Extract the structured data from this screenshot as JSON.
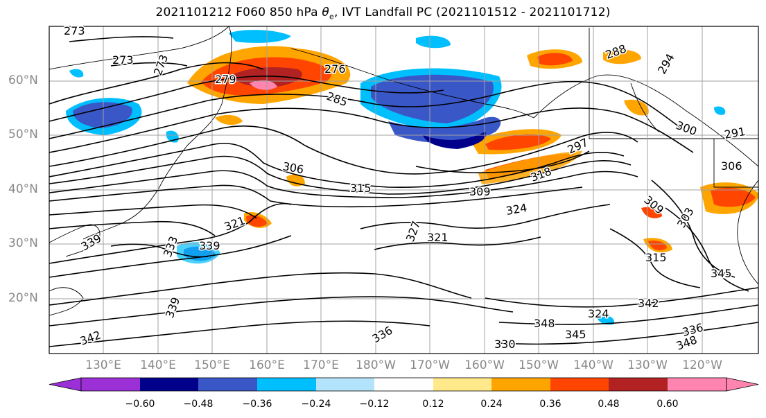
{
  "title": {
    "prefix": "2021101212 F060 850 hPa ",
    "theta": "θ",
    "sub": "e",
    "suffix": ", IVT Landfall PC (2021101512 - 2021101712)"
  },
  "lat_labels": [
    "60°N",
    "50°N",
    "40°N",
    "30°N",
    "20°N"
  ],
  "lon_labels": [
    "130°E",
    "140°E",
    "150°E",
    "160°E",
    "170°E",
    "180°W",
    "170°W",
    "160°W",
    "150°W",
    "140°W",
    "130°W",
    "120°W"
  ],
  "colorbar": {
    "colors": [
      "#9b30d6",
      "#00008b",
      "#3a57c8",
      "#00bfff",
      "#b4e4fb",
      "#ffffff",
      "#ffe98a",
      "#ffa500",
      "#ff4500",
      "#b22222",
      "#ff85b0"
    ],
    "tick_labels": [
      "−0.60",
      "−0.48",
      "−0.36",
      "−0.24",
      "−0.12",
      "0.12",
      "0.24",
      "0.36",
      "0.48",
      "0.60"
    ]
  },
  "contour_labels": [
    "273",
    "273",
    "273",
    "279",
    "276",
    "285",
    "288",
    "294",
    "300",
    "291",
    "297",
    "306",
    "315",
    "318",
    "306",
    "309",
    "303",
    "324",
    "321",
    "327",
    "321",
    "339",
    "333",
    "339",
    "348",
    "336",
    "345",
    "342",
    "324",
    "336",
    "330",
    "342",
    "348",
    "345",
    "339",
    "309",
    "315"
  ],
  "contour_labels_title": ""
}
